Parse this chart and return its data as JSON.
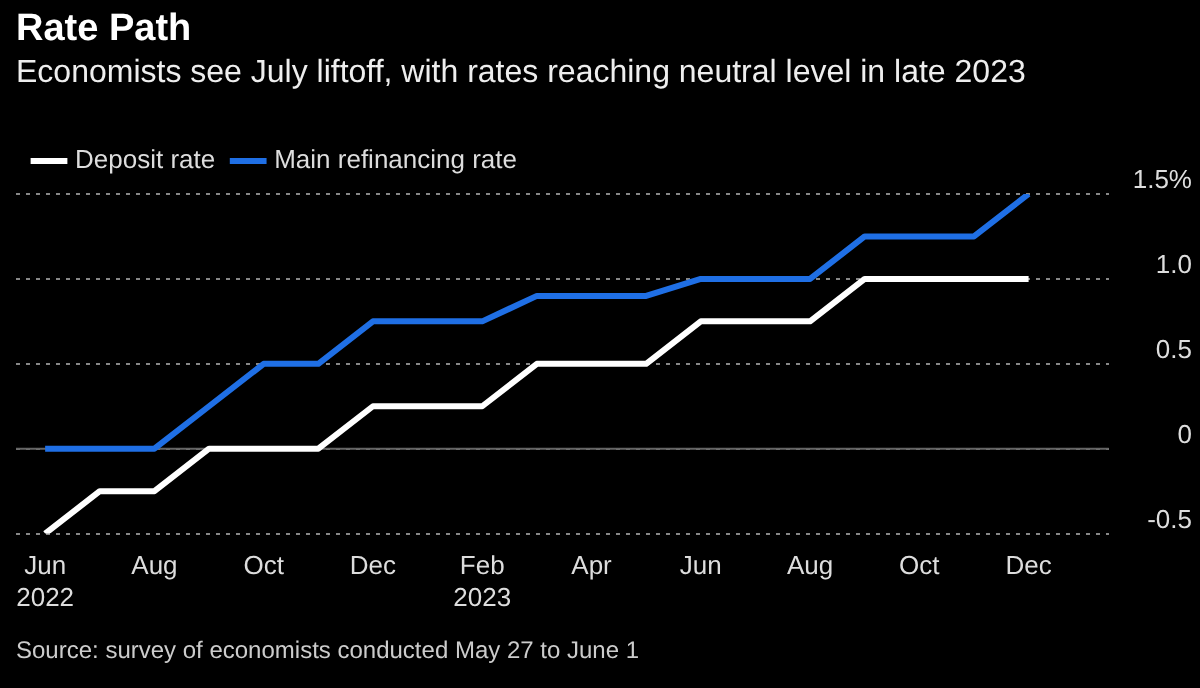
{
  "chart_data": {
    "type": "line",
    "title": "Rate Path",
    "subtitle": "Economists see July liftoff, with rates reaching neutral level in late 2023",
    "x": [
      "2022-06",
      "2022-07",
      "2022-08",
      "2022-09",
      "2022-10",
      "2022-11",
      "2022-12",
      "2023-01",
      "2023-02",
      "2023-03",
      "2023-04",
      "2023-05",
      "2023-06",
      "2023-07",
      "2023-08",
      "2023-09",
      "2023-10",
      "2023-11",
      "2023-12"
    ],
    "series": [
      {
        "name": "Deposit rate",
        "color": "#ffffff",
        "values": [
          -0.5,
          -0.25,
          -0.25,
          0,
          0,
          0,
          0.25,
          0.25,
          0.25,
          0.5,
          0.5,
          0.5,
          0.75,
          0.75,
          0.75,
          1.0,
          1.0,
          1.0,
          1.0
        ]
      },
      {
        "name": "Main refinancing rate",
        "color": "#1f6fe5",
        "values": [
          0,
          0,
          0,
          0.25,
          0.5,
          0.5,
          0.75,
          0.75,
          0.75,
          0.9,
          0.9,
          0.9,
          1.0,
          1.0,
          1.0,
          1.25,
          1.25,
          1.25,
          1.5
        ]
      }
    ],
    "xlim": [
      "2022-05-15",
      "2024-01-15"
    ],
    "xticks": [
      {
        "value": "2022-06",
        "label": "Jun 2022"
      },
      {
        "value": "2022-08",
        "label": "Aug"
      },
      {
        "value": "2022-10",
        "label": "Oct"
      },
      {
        "value": "2022-12",
        "label": "Dec"
      },
      {
        "value": "2023-02",
        "label": "Feb 2023"
      },
      {
        "value": "2023-04",
        "label": "Apr"
      },
      {
        "value": "2023-06",
        "label": "Jun"
      },
      {
        "value": "2023-08",
        "label": "Aug"
      },
      {
        "value": "2023-10",
        "label": "Oct"
      },
      {
        "value": "2023-12",
        "label": "Dec"
      }
    ],
    "ylim": [
      -0.5,
      1.5
    ],
    "yticks": [
      -0.5,
      0,
      0.5,
      {
        "value": 1.0,
        "label": "1.0"
      },
      {
        "value": 1.5,
        "label": "1.5%"
      }
    ],
    "grid": "y",
    "legend": "top left",
    "line_style": "solid",
    "ref_lines": [
      {
        "axis": "y",
        "value": 0,
        "color": "#666666"
      }
    ],
    "annotations": [
      "Source: survey of economists conducted May 27 to June 1"
    ]
  }
}
